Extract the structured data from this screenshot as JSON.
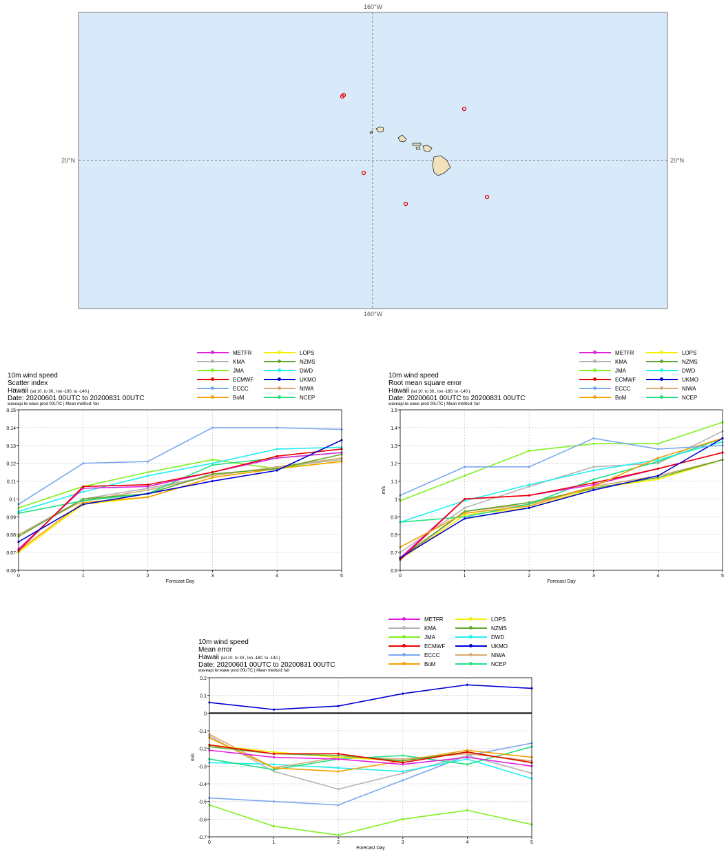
{
  "map": {
    "top_lon_label": "160°W",
    "bottom_lon_label": "160°W",
    "left_lat_label": "20°N",
    "right_lat_label": "20°N",
    "ocean_color": "#d8eafa",
    "land_color": "#f1e2bc",
    "station_color": "#e00000"
  },
  "legend": {
    "col1": [
      "METFR",
      "KMA",
      "JMA",
      "ECMWF",
      "ECCC",
      "BoM"
    ],
    "col2": [
      "LOPS",
      "NZMS",
      "DWD",
      "UKMO",
      "NIWA",
      "NCEP"
    ],
    "colors": {
      "METFR": "#e020e0",
      "KMA": "#b4b4b4",
      "JMA": "#80f020",
      "ECMWF": "#e80000",
      "ECCC": "#7aa8f0",
      "BoM": "#f5a000",
      "LOPS": "#f5f000",
      "NZMS": "#60a830",
      "DWD": "#20f0f0",
      "UKMO": "#0000d0",
      "NIWA": "#d8aa70",
      "NCEP": "#20e080"
    }
  },
  "common": {
    "variable": "10m wind speed",
    "region": "Hawaii",
    "region_detail": "(lat 10. to 30., lon -180. to -140.)",
    "date": "Date: 20200601 00UTC to 20200831 00UTC",
    "footer": "waveapi lw wave prod 00UTC | Mean method: fair",
    "xlabel": "Forecast Day",
    "ylabel": "m/s"
  },
  "chart_data": [
    {
      "type": "line",
      "title": "Scatter index",
      "xlabel": "Forecast Day",
      "ylabel": "",
      "x": [
        0,
        1,
        2,
        3,
        4,
        5
      ],
      "ylim": [
        0.06,
        0.15
      ],
      "yticks": [
        0.06,
        0.07,
        0.08,
        0.09,
        0.1,
        0.11,
        0.12,
        0.13,
        0.14,
        0.15
      ],
      "ytick_labels": [
        "0.06",
        "0.07",
        "0.08",
        "0.09",
        "0.1",
        "0.11",
        "0.12",
        "0.13",
        "0.14",
        "0.15"
      ],
      "zero_line": false,
      "series": [
        {
          "name": "LOPS",
          "values": [
            0.07,
            0.097,
            0.101,
            0.112,
            0.117,
            0.121
          ]
        },
        {
          "name": "JMA",
          "values": [
            0.095,
            0.107,
            0.115,
            0.122,
            0.117,
            0.123
          ]
        },
        {
          "name": "KMA",
          "values": [
            0.08,
            0.1,
            0.106,
            0.113,
            0.118,
            0.122
          ]
        },
        {
          "name": "NIWA",
          "values": [
            0.08,
            0.099,
            0.105,
            0.113,
            0.118,
            0.123
          ]
        },
        {
          "name": "BoM",
          "values": [
            0.071,
            0.098,
            0.101,
            0.112,
            0.117,
            0.121
          ]
        },
        {
          "name": "NZMS",
          "values": [
            0.079,
            0.1,
            0.103,
            0.114,
            0.117,
            0.125
          ]
        },
        {
          "name": "NCEP",
          "values": [
            0.092,
            0.099,
            0.103,
            0.119,
            0.123,
            0.126
          ]
        },
        {
          "name": "DWD",
          "values": [
            0.093,
            0.104,
            0.113,
            0.12,
            0.128,
            0.129
          ]
        },
        {
          "name": "METFR",
          "values": [
            0.072,
            0.106,
            0.107,
            0.115,
            0.123,
            0.126
          ]
        },
        {
          "name": "ECMWF",
          "values": [
            0.071,
            0.107,
            0.108,
            0.115,
            0.124,
            0.128
          ]
        },
        {
          "name": "UKMO",
          "values": [
            0.076,
            0.097,
            0.103,
            0.11,
            0.116,
            0.133
          ]
        },
        {
          "name": "ECCC",
          "values": [
            0.097,
            0.12,
            0.121,
            0.14,
            0.14,
            0.139
          ]
        }
      ]
    },
    {
      "type": "line",
      "title": "Root mean square error",
      "xlabel": "Forecast Day",
      "ylabel": "m/s",
      "x": [
        0,
        1,
        2,
        3,
        4,
        5
      ],
      "ylim": [
        0.6,
        1.5
      ],
      "yticks": [
        0.6,
        0.7,
        0.8,
        0.9,
        1.0,
        1.1,
        1.2,
        1.3,
        1.4,
        1.5
      ],
      "ytick_labels": [
        "0.6",
        "0.7",
        "0.8",
        "0.9",
        "1",
        "1.1",
        "1.2",
        "1.3",
        "1.4",
        "1.5"
      ],
      "zero_line": false,
      "series": [
        {
          "name": "LOPS",
          "values": [
            0.66,
            0.91,
            0.95,
            1.06,
            1.11,
            1.22
          ]
        },
        {
          "name": "KMA",
          "values": [
            0.7,
            0.95,
            1.07,
            1.18,
            1.2,
            1.38
          ]
        },
        {
          "name": "NIWA",
          "values": [
            0.66,
            0.93,
            0.97,
            1.07,
            1.13,
            1.22
          ]
        },
        {
          "name": "NZMS",
          "values": [
            0.67,
            0.93,
            0.98,
            1.06,
            1.12,
            1.22
          ]
        },
        {
          "name": "NCEP",
          "values": [
            0.87,
            0.9,
            0.97,
            1.11,
            1.21,
            1.34
          ]
        },
        {
          "name": "DWD",
          "values": [
            0.87,
            0.99,
            1.08,
            1.16,
            1.22,
            1.32
          ]
        },
        {
          "name": "METFR",
          "values": [
            0.67,
            1.0,
            1.02,
            1.08,
            1.17,
            1.26
          ]
        },
        {
          "name": "ECMWF",
          "values": [
            0.66,
            1.0,
            1.02,
            1.09,
            1.17,
            1.26
          ]
        },
        {
          "name": "BoM",
          "values": [
            0.73,
            0.92,
            0.96,
            1.07,
            1.23,
            1.34
          ]
        },
        {
          "name": "UKMO",
          "values": [
            0.67,
            0.89,
            0.95,
            1.05,
            1.13,
            1.34
          ]
        },
        {
          "name": "JMA",
          "values": [
            0.99,
            1.13,
            1.27,
            1.31,
            1.31,
            1.43
          ]
        },
        {
          "name": "ECCC",
          "values": [
            1.02,
            1.18,
            1.18,
            1.34,
            1.28,
            1.3
          ]
        }
      ]
    },
    {
      "type": "line",
      "title": "Mean error",
      "xlabel": "Forecast Day",
      "ylabel": "m/s",
      "x": [
        0,
        1,
        2,
        3,
        4,
        5
      ],
      "ylim": [
        -0.7,
        0.2
      ],
      "yticks": [
        -0.7,
        -0.6,
        -0.5,
        -0.4,
        -0.3,
        -0.2,
        -0.1,
        0,
        0.1,
        0.2
      ],
      "ytick_labels": [
        "-0.7",
        "-0.6",
        "-0.5",
        "-0.4",
        "-0.3",
        "-0.2",
        "-0.1",
        "0",
        "0.1",
        "0.2"
      ],
      "zero_line": true,
      "series": [
        {
          "name": "JMA",
          "values": [
            -0.52,
            -0.64,
            -0.69,
            -0.6,
            -0.55,
            -0.63
          ]
        },
        {
          "name": "ECCC",
          "values": [
            -0.48,
            -0.5,
            -0.52,
            -0.38,
            -0.24,
            -0.17
          ]
        },
        {
          "name": "KMA",
          "values": [
            -0.13,
            -0.33,
            -0.43,
            -0.34,
            -0.24,
            -0.34
          ]
        },
        {
          "name": "DWD",
          "values": [
            -0.28,
            -0.29,
            -0.31,
            -0.33,
            -0.26,
            -0.37
          ]
        },
        {
          "name": "NCEP",
          "values": [
            -0.26,
            -0.32,
            -0.26,
            -0.24,
            -0.29,
            -0.19
          ]
        },
        {
          "name": "NIWA",
          "values": [
            -0.12,
            -0.31,
            -0.25,
            -0.26,
            -0.23,
            -0.27
          ]
        },
        {
          "name": "BoM",
          "values": [
            -0.14,
            -0.31,
            -0.33,
            -0.27,
            -0.21,
            -0.25
          ]
        },
        {
          "name": "LOPS",
          "values": [
            -0.18,
            -0.22,
            -0.25,
            -0.27,
            -0.22,
            -0.28
          ]
        },
        {
          "name": "NZMS",
          "values": [
            -0.19,
            -0.23,
            -0.24,
            -0.27,
            -0.22,
            -0.28
          ]
        },
        {
          "name": "METFR",
          "values": [
            -0.21,
            -0.25,
            -0.26,
            -0.29,
            -0.25,
            -0.3
          ]
        },
        {
          "name": "ECMWF",
          "values": [
            -0.18,
            -0.23,
            -0.23,
            -0.28,
            -0.22,
            -0.28
          ]
        },
        {
          "name": "UKMO",
          "values": [
            0.06,
            0.02,
            0.04,
            0.11,
            0.16,
            0.14
          ]
        }
      ]
    }
  ]
}
